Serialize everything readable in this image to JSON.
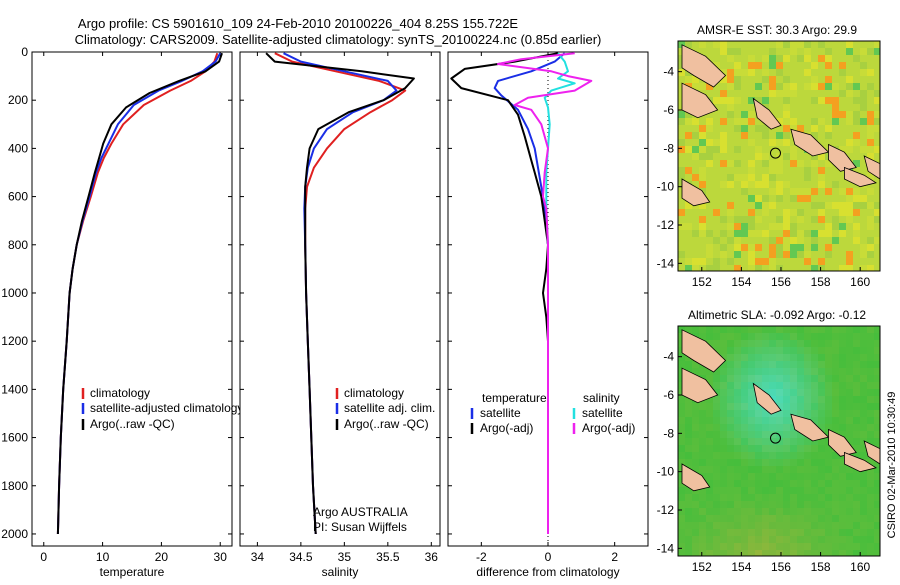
{
  "title_line1": "Argo profile: CS 5901610_109 24-Feb-2010 20100226_404 8.25S 155.722E",
  "title_line2": "Climatology: CARS2009. Satellite-adjusted climatology: synTS_20100224.nc (0.85d earlier)",
  "credit_vertical": "CSIRO 02-Mar-2010 10:30:49",
  "colors": {
    "red": "#e02020",
    "blue": "#1a2ee6",
    "black": "#000000",
    "cyan": "#22e0e0",
    "magenta": "#ee22ee"
  },
  "chart_data": [
    {
      "type": "line",
      "xlabel": "temperature",
      "xlim": [
        -2,
        32
      ],
      "ylim": [
        2050,
        0
      ],
      "xticks": [
        0,
        10,
        20,
        30
      ],
      "yticks": [
        0,
        200,
        400,
        600,
        800,
        1000,
        1200,
        1400,
        1600,
        1800,
        2000
      ],
      "legend": [
        "climatology",
        "satellite-adjusted climatology",
        "Argo(..raw -QC)"
      ],
      "series": [
        {
          "name": "climatology",
          "color": "red",
          "points": [
            [
              29.5,
              5
            ],
            [
              29,
              40
            ],
            [
              27.5,
              80
            ],
            [
              25,
              120
            ],
            [
              21.5,
              160
            ],
            [
              17,
              220
            ],
            [
              13.5,
              300
            ],
            [
              11.5,
              380
            ],
            [
              10.2,
              440
            ],
            [
              9.2,
              500
            ],
            [
              8,
              600
            ],
            [
              6.7,
              700
            ],
            [
              5.6,
              800
            ],
            [
              4.9,
              900
            ],
            [
              4.4,
              1000
            ],
            [
              3.9,
              1200
            ],
            [
              3.3,
              1400
            ],
            [
              2.9,
              1600
            ],
            [
              2.6,
              1800
            ],
            [
              2.4,
              2000
            ]
          ]
        },
        {
          "name": "satellite-adjusted climatology",
          "color": "blue",
          "points": [
            [
              30,
              5
            ],
            [
              29.2,
              40
            ],
            [
              27,
              80
            ],
            [
              23.5,
              120
            ],
            [
              19.5,
              160
            ],
            [
              15.3,
              220
            ],
            [
              12.6,
              300
            ],
            [
              11,
              380
            ],
            [
              9.8,
              440
            ],
            [
              8.9,
              500
            ],
            [
              7.8,
              600
            ],
            [
              6.6,
              700
            ],
            [
              5.6,
              800
            ],
            [
              4.9,
              900
            ],
            [
              4.4,
              1000
            ],
            [
              3.9,
              1200
            ],
            [
              3.3,
              1400
            ],
            [
              2.9,
              1600
            ],
            [
              2.6,
              1800
            ],
            [
              2.4,
              2000
            ]
          ]
        },
        {
          "name": "Argo(..raw -QC)",
          "color": "black",
          "points": [
            [
              30.3,
              5
            ],
            [
              29.8,
              40
            ],
            [
              27.5,
              80
            ],
            [
              23,
              120
            ],
            [
              18,
              170
            ],
            [
              14,
              230
            ],
            [
              11.5,
              300
            ],
            [
              10.1,
              380
            ],
            [
              9.4,
              440
            ],
            [
              8.7,
              500
            ],
            [
              7.6,
              600
            ],
            [
              6.5,
              700
            ],
            [
              5.6,
              800
            ],
            [
              4.9,
              900
            ],
            [
              4.4,
              1000
            ],
            [
              3.9,
              1200
            ],
            [
              3.3,
              1400
            ],
            [
              2.9,
              1600
            ],
            [
              2.6,
              1800
            ],
            [
              2.4,
              2000
            ]
          ]
        }
      ]
    },
    {
      "type": "line",
      "xlabel": "salinity",
      "xlim": [
        33.8,
        36.1
      ],
      "ylim": [
        2050,
        0
      ],
      "xticks": [
        34,
        34.5,
        35,
        35.5,
        36
      ],
      "legend": [
        "climatology",
        "satellite adj. clim.",
        "Argo(..raw -QC)"
      ],
      "annotation": [
        "Argo AUSTRALIA",
        "PI: Susan Wijffels"
      ],
      "series": [
        {
          "name": "climatology",
          "color": "red",
          "points": [
            [
              34.2,
              5
            ],
            [
              34.4,
              40
            ],
            [
              34.9,
              80
            ],
            [
              35.4,
              120
            ],
            [
              35.7,
              160
            ],
            [
              35.55,
              200
            ],
            [
              35.3,
              250
            ],
            [
              35,
              320
            ],
            [
              34.8,
              400
            ],
            [
              34.65,
              480
            ],
            [
              34.57,
              560
            ],
            [
              34.55,
              650
            ],
            [
              34.55,
              800
            ],
            [
              34.56,
              1000
            ],
            [
              34.58,
              1200
            ],
            [
              34.6,
              1400
            ],
            [
              34.62,
              1600
            ],
            [
              34.64,
              1800
            ],
            [
              34.67,
              2000
            ]
          ]
        },
        {
          "name": "satellite adj. clim.",
          "color": "blue",
          "points": [
            [
              34.3,
              5
            ],
            [
              34.5,
              40
            ],
            [
              35,
              80
            ],
            [
              35.5,
              120
            ],
            [
              35.6,
              160
            ],
            [
              35.45,
              200
            ],
            [
              35.1,
              250
            ],
            [
              34.8,
              320
            ],
            [
              34.65,
              400
            ],
            [
              34.58,
              480
            ],
            [
              34.55,
              560
            ],
            [
              34.54,
              650
            ],
            [
              34.55,
              800
            ],
            [
              34.56,
              1000
            ],
            [
              34.58,
              1200
            ],
            [
              34.6,
              1400
            ],
            [
              34.62,
              1600
            ],
            [
              34.64,
              1800
            ],
            [
              34.67,
              2000
            ]
          ]
        },
        {
          "name": "Argo(..raw -QC)",
          "color": "black",
          "points": [
            [
              34.1,
              5
            ],
            [
              34.2,
              40
            ],
            [
              35.2,
              80
            ],
            [
              35.8,
              110
            ],
            [
              35.7,
              150
            ],
            [
              35.45,
              200
            ],
            [
              35.05,
              250
            ],
            [
              34.7,
              320
            ],
            [
              34.6,
              400
            ],
            [
              34.57,
              480
            ],
            [
              34.55,
              560
            ],
            [
              34.55,
              650
            ],
            [
              34.55,
              800
            ],
            [
              34.56,
              1000
            ],
            [
              34.58,
              1200
            ],
            [
              34.6,
              1400
            ],
            [
              34.62,
              1600
            ],
            [
              34.64,
              1800
            ],
            [
              34.67,
              2000
            ]
          ]
        }
      ]
    },
    {
      "type": "line",
      "xlabel": "difference from climatology",
      "xlim": [
        -3,
        3
      ],
      "ylim": [
        2050,
        0
      ],
      "xticks": [
        -2,
        0,
        2
      ],
      "legend_left_title": "temperature",
      "legend_right_title": "salinity",
      "legend_left": [
        "satellite",
        "Argo(-adj)"
      ],
      "legend_right": [
        "satellite",
        "Argo(-adj)"
      ],
      "series": [
        {
          "name": "temperature satellite",
          "color": "blue",
          "points": [
            [
              0.5,
              5
            ],
            [
              0.2,
              40
            ],
            [
              -0.5,
              80
            ],
            [
              -1.5,
              120
            ],
            [
              -1.6,
              150
            ],
            [
              -1.4,
              180
            ],
            [
              -0.9,
              240
            ],
            [
              -0.6,
              320
            ],
            [
              -0.4,
              400
            ],
            [
              -0.3,
              480
            ],
            [
              -0.2,
              560
            ],
            [
              -0.1,
              650
            ],
            [
              0,
              800
            ],
            [
              0,
              1000
            ],
            [
              0,
              1200
            ],
            [
              0,
              1400
            ],
            [
              0,
              1600
            ],
            [
              0,
              1800
            ],
            [
              0,
              2000
            ]
          ]
        },
        {
          "name": "temperature Argo(-adj)",
          "color": "black",
          "points": [
            [
              0.3,
              5
            ],
            [
              -1,
              40
            ],
            [
              -2.5,
              70
            ],
            [
              -2.9,
              110
            ],
            [
              -2.6,
              150
            ],
            [
              -1.2,
              200
            ],
            [
              -0.9,
              260
            ],
            [
              -0.7,
              350
            ],
            [
              -0.5,
              450
            ],
            [
              -0.4,
              500
            ],
            [
              -0.2,
              600
            ],
            [
              -0.1,
              700
            ],
            [
              0,
              800
            ],
            [
              -0.05,
              900
            ],
            [
              -0.15,
              1000
            ],
            [
              -0.05,
              1100
            ],
            [
              0,
              1200
            ],
            [
              0,
              1400
            ],
            [
              0,
              1600
            ],
            [
              0,
              1800
            ],
            [
              0,
              2000
            ]
          ]
        },
        {
          "name": "salinity satellite",
          "color": "cyan",
          "points": [
            [
              0.3,
              5
            ],
            [
              0.5,
              40
            ],
            [
              0.6,
              80
            ],
            [
              0.3,
              110
            ],
            [
              0.8,
              130
            ],
            [
              0.1,
              160
            ],
            [
              -0.1,
              190
            ],
            [
              0,
              230
            ],
            [
              0.05,
              300
            ],
            [
              0,
              400
            ],
            [
              -0.05,
              500
            ],
            [
              -0.05,
              650
            ],
            [
              0,
              800
            ],
            [
              0,
              1000
            ],
            [
              0,
              1200
            ],
            [
              0,
              1400
            ],
            [
              0,
              1600
            ],
            [
              0,
              1800
            ],
            [
              0,
              2000
            ]
          ]
        },
        {
          "name": "salinity Argo(-adj)",
          "color": "magenta",
          "points": [
            [
              0.8,
              5
            ],
            [
              -0.8,
              30
            ],
            [
              -1.5,
              50
            ],
            [
              0.1,
              80
            ],
            [
              0.6,
              100
            ],
            [
              1.3,
              120
            ],
            [
              0.8,
              160
            ],
            [
              -0.6,
              190
            ],
            [
              -1,
              220
            ],
            [
              -0.5,
              240
            ],
            [
              -0.2,
              300
            ],
            [
              0,
              400
            ],
            [
              -0.1,
              500
            ],
            [
              -0.15,
              600
            ],
            [
              -0.05,
              650
            ],
            [
              0,
              800
            ],
            [
              0,
              1000
            ],
            [
              0,
              1200
            ],
            [
              0,
              1400
            ],
            [
              0,
              1600
            ],
            [
              0,
              1800
            ],
            [
              0,
              2000
            ]
          ]
        }
      ]
    },
    {
      "type": "heatmap",
      "title": "AMSR-E SST: 30.3  Argo: 29.9",
      "xlim": [
        150.8,
        161
      ],
      "ylim": [
        -14.4,
        -2.4
      ],
      "xticks": [
        152,
        154,
        156,
        158,
        160
      ],
      "yticks": [
        -4,
        -6,
        -8,
        -10,
        -12,
        -14
      ],
      "marker": [
        155.722,
        -8.25
      ]
    },
    {
      "type": "heatmap",
      "title": "Altimetric SLA: -0.092  Argo: -0.12",
      "xlim": [
        150.8,
        161
      ],
      "ylim": [
        -14.4,
        -2.4
      ],
      "xticks": [
        152,
        154,
        156,
        158,
        160
      ],
      "yticks": [
        -4,
        -6,
        -8,
        -10,
        -12,
        -14
      ],
      "marker": [
        155.722,
        -8.25
      ]
    }
  ]
}
